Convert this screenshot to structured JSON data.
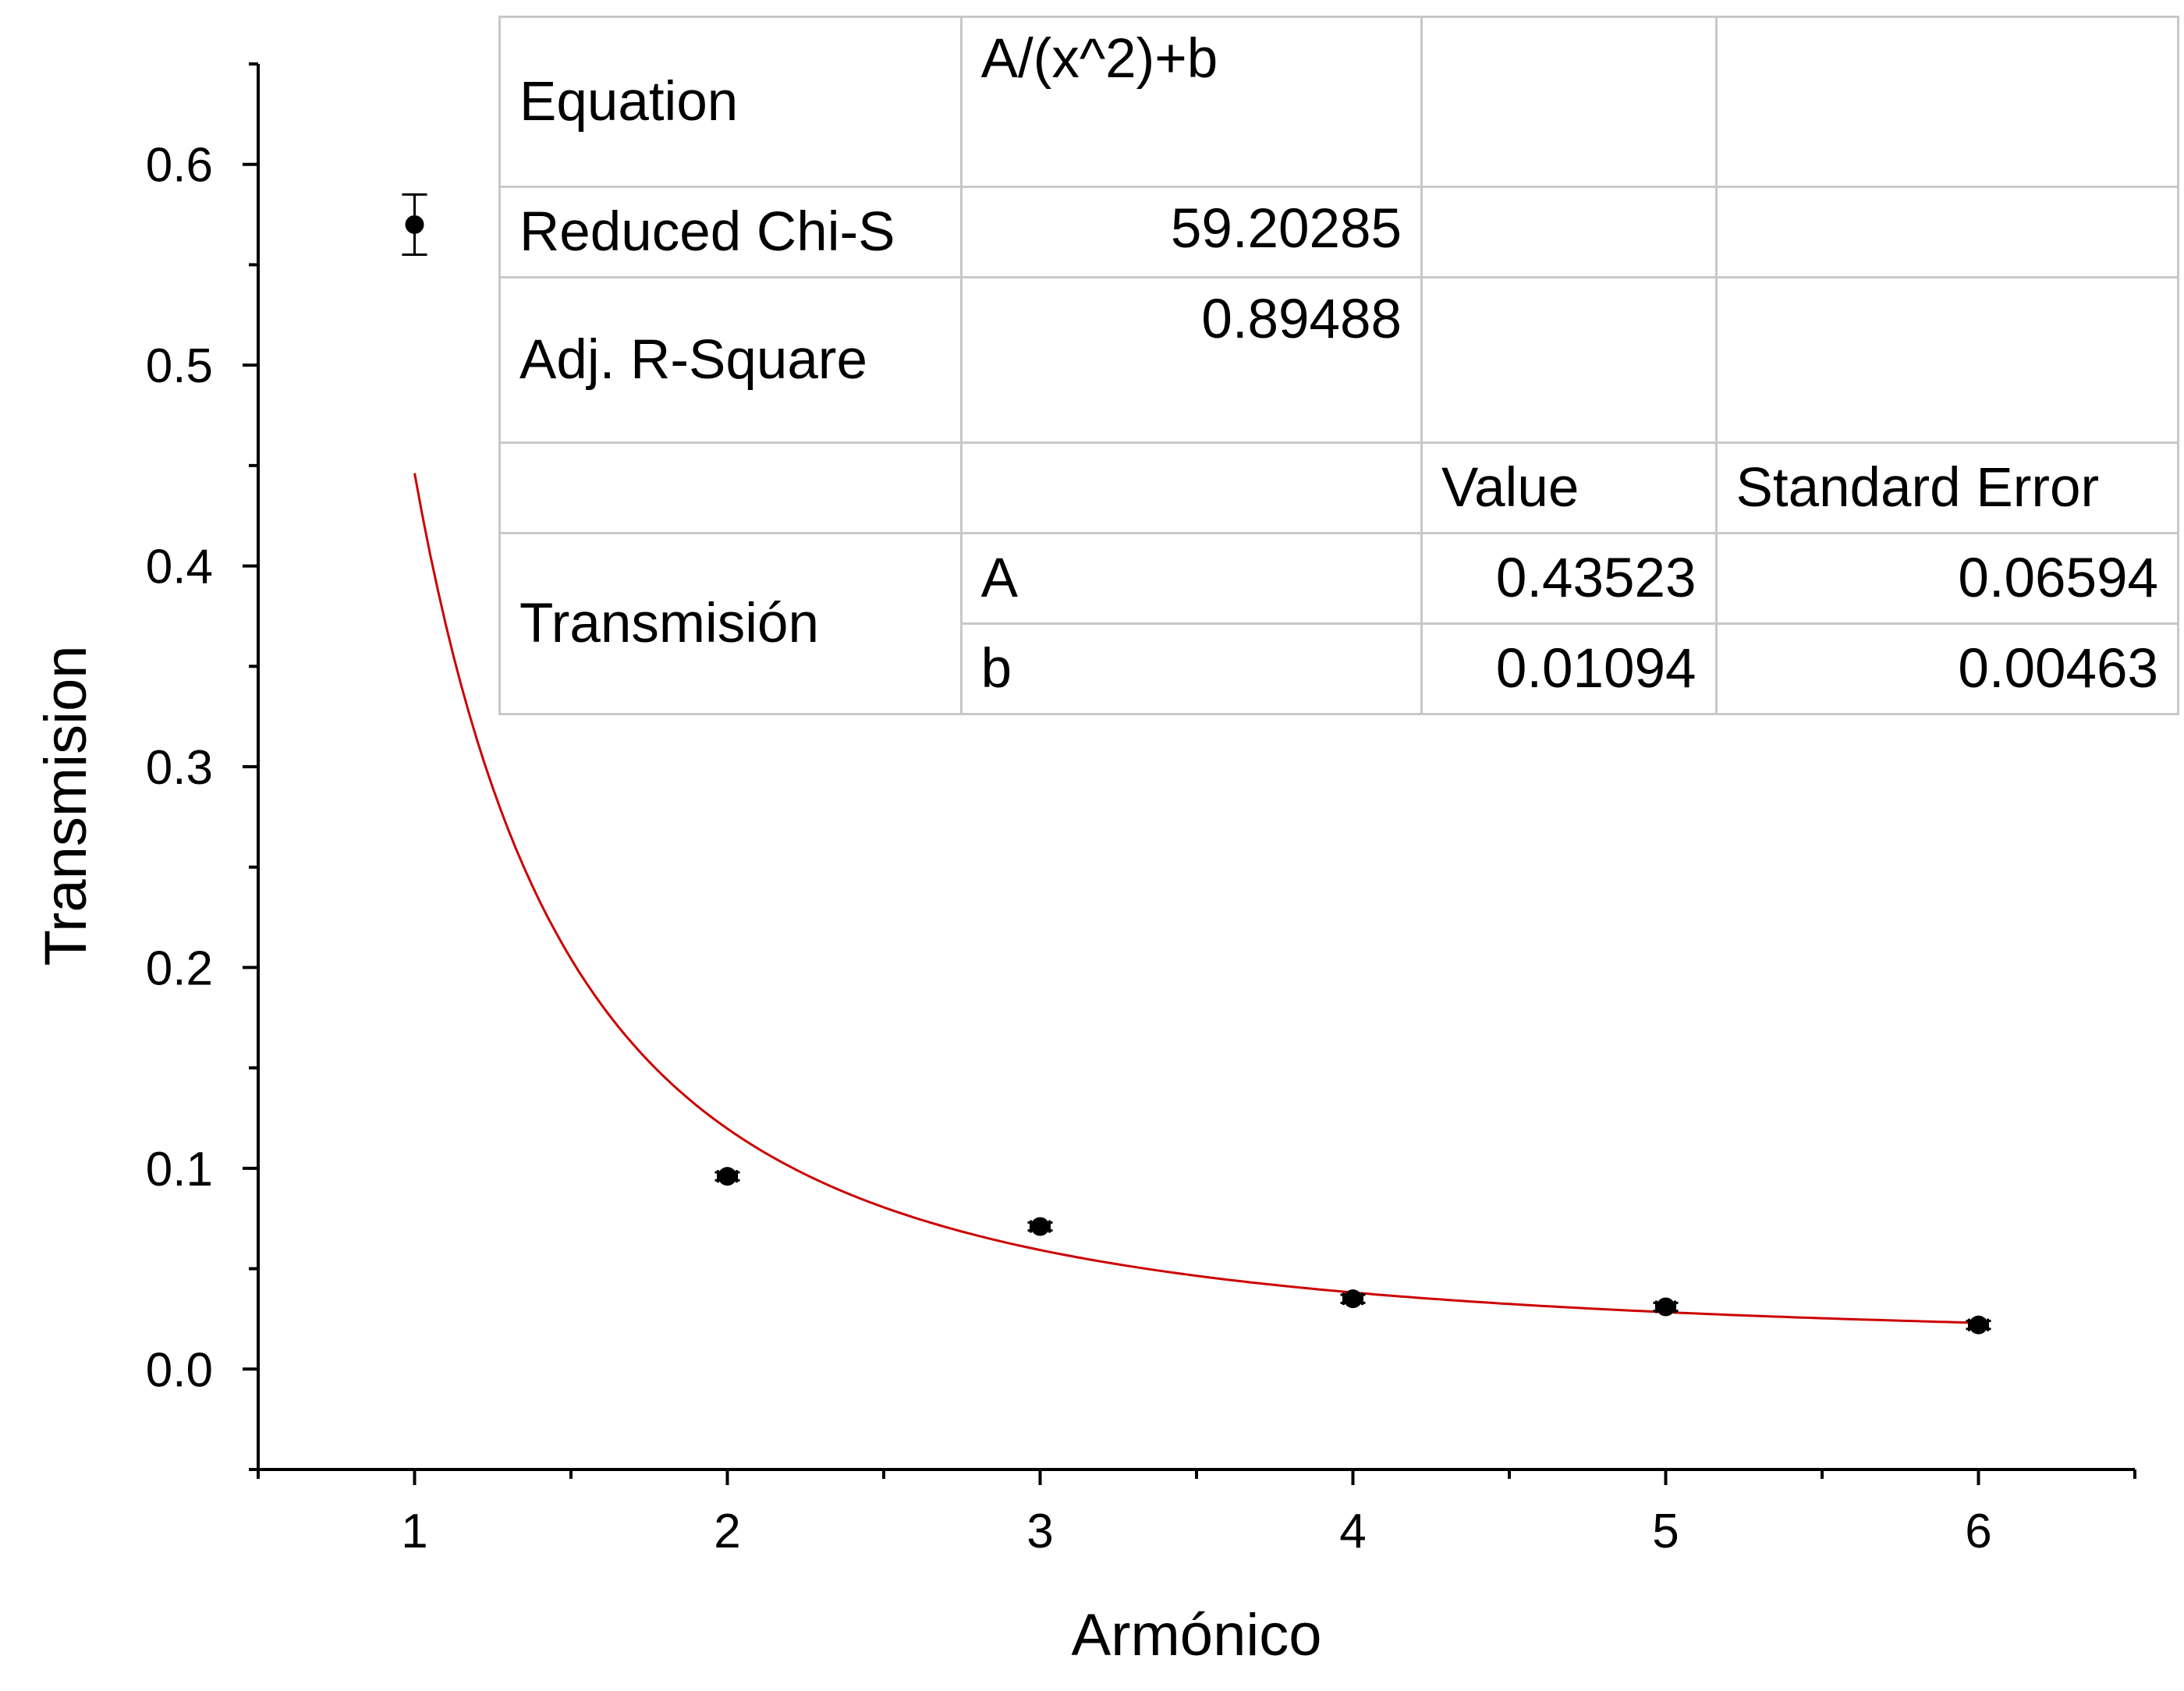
{
  "chart_data": {
    "type": "scatter",
    "xlabel": "Armónico",
    "ylabel": "Transmision",
    "xlim": [
      0.5,
      6.5
    ],
    "ylim": [
      -0.05,
      0.65
    ],
    "x_ticks": [
      1,
      2,
      3,
      4,
      5,
      6
    ],
    "y_ticks": [
      0.0,
      0.1,
      0.2,
      0.3,
      0.4,
      0.5,
      0.6
    ],
    "grid": false,
    "series": [
      {
        "type": "scatter",
        "x": [
          1,
          2,
          3,
          4,
          5,
          6
        ],
        "y": [
          0.57,
          0.096,
          0.071,
          0.035,
          0.031,
          0.022
        ],
        "y_error": [
          0.015,
          0.002,
          0.002,
          0.002,
          0.002,
          0.002
        ],
        "x_error": [
          0,
          0.03,
          0.03,
          0.03,
          0.03,
          0.03
        ],
        "color": "#000000"
      },
      {
        "type": "line",
        "function": "A/(x^2)+b",
        "A": 0.43523,
        "b": 0.01094,
        "x_range": [
          1,
          6
        ],
        "color": "#cc0000"
      }
    ],
    "fit_table": {
      "equation_label": "Equation",
      "equation": "A/(x^2)+b",
      "chi_label": "Reduced Chi-S",
      "chi_value": "59.20285",
      "r2_label": "Adj. R-Square",
      "r2_value": "0.89488",
      "value_header": "Value",
      "stderr_header": "Standard Error",
      "group_label": "Transmisión",
      "params": [
        {
          "name": "A",
          "value": "0.43523",
          "stderr": "0.06594"
        },
        {
          "name": "b",
          "value": "0.01094",
          "stderr": "0.00463"
        }
      ]
    }
  }
}
